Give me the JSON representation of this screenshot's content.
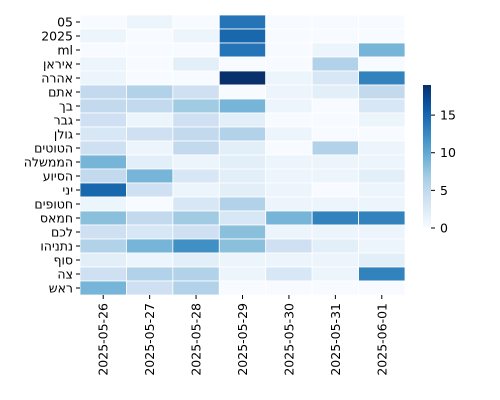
{
  "chart_data": {
    "type": "heatmap",
    "title": "",
    "xlabel": "",
    "ylabel": "",
    "colormap": "Blues",
    "colorbar": {
      "min": 0,
      "max": 19,
      "ticks": [
        0,
        5,
        10,
        15
      ]
    },
    "x_categories": [
      "2025-05-26",
      "2025-05-27",
      "2025-05-28",
      "2025-05-29",
      "2025-05-30",
      "2025-05-31",
      "2025-06-01"
    ],
    "y_categories": [
      "05",
      "2025",
      "ml",
      "איראן",
      "אהרה",
      "אתם",
      "בך",
      "גבר",
      "גולן",
      "הטוטים",
      "הממשלה",
      "הסיוע",
      "יני",
      "חטופים",
      "חמאס",
      "לכם",
      "נתניהו",
      "סוף",
      "צה",
      "ראש"
    ],
    "values": [
      [
        0,
        1,
        0,
        14,
        0,
        0,
        0
      ],
      [
        1,
        0,
        1,
        15,
        0,
        0,
        0
      ],
      [
        0,
        0,
        0,
        14,
        0,
        1,
        9
      ],
      [
        1,
        0,
        2,
        0,
        0,
        6,
        0
      ],
      [
        1,
        0,
        0,
        19,
        1,
        3,
        13
      ],
      [
        5,
        6,
        4,
        0,
        1,
        2,
        5
      ],
      [
        5,
        5,
        7,
        9,
        1,
        0,
        3
      ],
      [
        4,
        1,
        4,
        2,
        0,
        0,
        1
      ],
      [
        3,
        4,
        5,
        6,
        1,
        0,
        0
      ],
      [
        4,
        1,
        5,
        2,
        0,
        6,
        1
      ],
      [
        9,
        2,
        1,
        2,
        1,
        1,
        1
      ],
      [
        5,
        9,
        3,
        2,
        1,
        1,
        2
      ],
      [
        15,
        4,
        1,
        2,
        1,
        0,
        1
      ],
      [
        1,
        0,
        3,
        6,
        1,
        1,
        1
      ],
      [
        8,
        5,
        7,
        3,
        9,
        13,
        13
      ],
      [
        4,
        3,
        4,
        8,
        1,
        1,
        1
      ],
      [
        6,
        9,
        12,
        8,
        4,
        2,
        1
      ],
      [
        2,
        1,
        2,
        1,
        1,
        1,
        2
      ],
      [
        4,
        6,
        6,
        1,
        3,
        1,
        13
      ],
      [
        9,
        4,
        6,
        0,
        0,
        0,
        0
      ]
    ]
  }
}
